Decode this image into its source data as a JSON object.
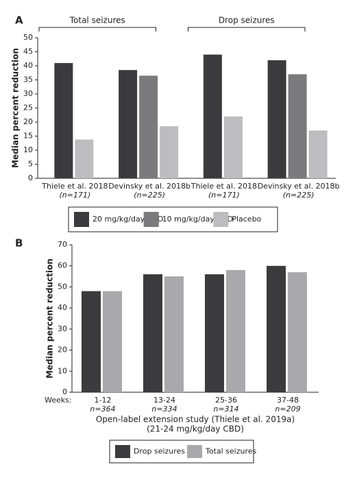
{
  "chart_data": [
    {
      "type": "bar",
      "panel": "A",
      "ylabel": "Median percent reduction",
      "category_groups": [
        "Total seizures",
        "Drop seizures"
      ],
      "categories": [
        "Thiele et al. 2018",
        "Devinsky et al. 2018b",
        "Thiele et al. 2018",
        "Devinsky et al. 2018b"
      ],
      "category_sublabels": [
        "(n=171)",
        "(n=225)",
        "(n=171)",
        "(n=225)"
      ],
      "series": [
        {
          "name": "20 mg/kg/day CBD",
          "color": "#3b3b3d",
          "values": [
            41,
            38.5,
            44,
            42
          ]
        },
        {
          "name": "10 mg/kg/day CBD",
          "color": "#7b7b7d",
          "values": [
            null,
            36.5,
            null,
            37
          ]
        },
        {
          "name": "Placebo",
          "color": "#bdbdbf",
          "values": [
            13.8,
            18.5,
            22,
            17
          ]
        }
      ],
      "ylim": [
        0,
        50
      ],
      "yticks": [
        0,
        5,
        10,
        15,
        20,
        25,
        30,
        35,
        40,
        45,
        50
      ]
    },
    {
      "type": "bar",
      "panel": "B",
      "ylabel": "Median percent reduction",
      "xprefix": [
        "Weeks:"
      ],
      "categories": [
        "1-12",
        "13-24",
        "25-36",
        "37-48"
      ],
      "category_sublabels": [
        "n=364",
        "n=334",
        "n=314",
        "n=209"
      ],
      "xlabel": [
        "Open-label extension study (Thiele et al. 2019a)",
        "(21-24 mg/kg/day CBD)"
      ],
      "series": [
        {
          "name": "Drop seizures",
          "color": "#3b3b3d",
          "values": [
            48,
            56,
            56,
            60
          ]
        },
        {
          "name": "Total seizures",
          "color": "#a9a9ab",
          "values": [
            48,
            55,
            58,
            57
          ]
        }
      ],
      "ylim": [
        0,
        70
      ],
      "yticks": [
        0,
        10,
        20,
        30,
        40,
        50,
        60,
        70
      ]
    }
  ]
}
